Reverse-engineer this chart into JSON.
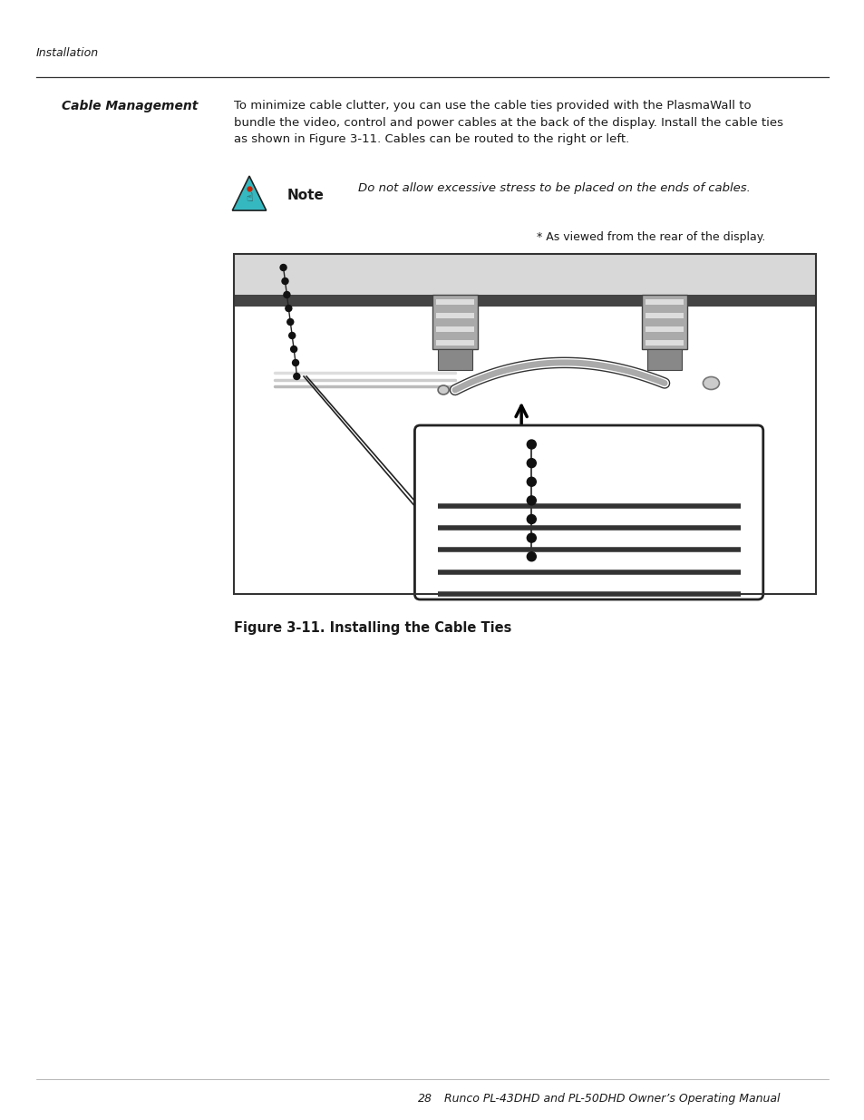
{
  "page_header": "Installation",
  "section_title": "Cable Management",
  "body_text": "To minimize cable clutter, you can use the cable ties provided with the PlasmaWall to\nbundle the video, control and power cables at the back of the display. Install the cable ties\nas shown in Figure 3-11. Cables can be routed to the right or left.",
  "note_label": "Note",
  "note_text": "Do not allow excessive stress to be placed on the ends of cables.",
  "rear_view_text": "* As viewed from the rear of the display.",
  "figure_caption": "Figure 3-11. Installing the Cable Ties",
  "page_number": "28",
  "page_footer": "Runco PL-43DHD and PL-50DHD Owner’s Operating Manual",
  "bg_color": "#ffffff",
  "text_color": "#1a1a1a"
}
